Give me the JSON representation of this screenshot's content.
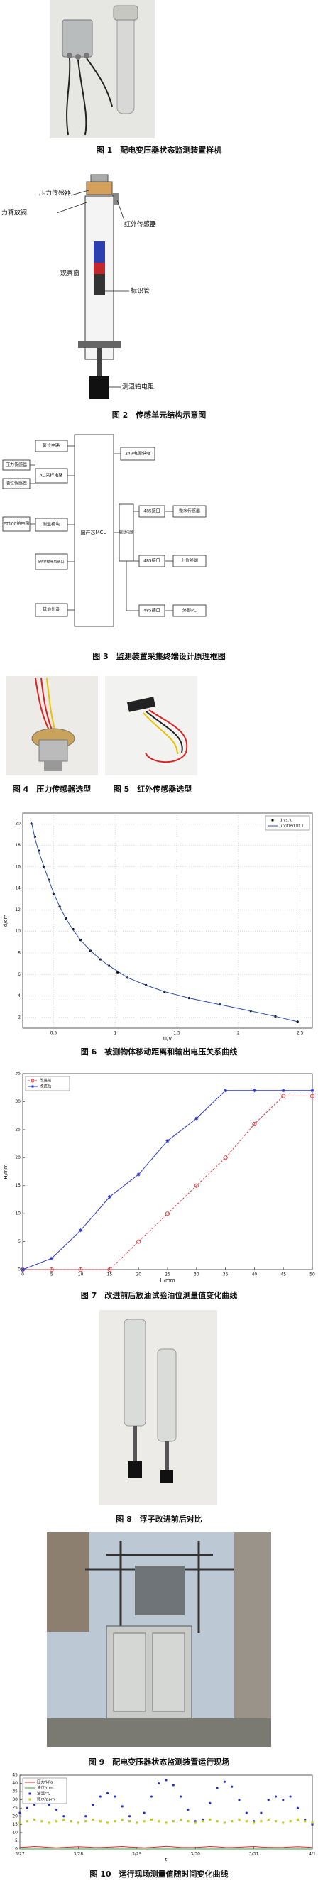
{
  "figures": [
    {
      "caption": "图 1　配电变压器状态监测装置样机"
    },
    {
      "caption": "图 2　传感单元结构示意图"
    },
    {
      "caption": "图 3　监测装置采集终端设计原理框图"
    },
    {
      "caption": "图 4　压力传感器选型"
    },
    {
      "caption": "图 5　红外传感器选型"
    },
    {
      "caption": "图 6　被测物体移动距离和输出电压关系曲线"
    },
    {
      "caption": "图 7　改进前后放油试验油位测量值变化曲线"
    },
    {
      "caption": "图 8　浮子改进前后对比"
    },
    {
      "caption": "图 9　配电变压器状态监测装置运行现场"
    },
    {
      "caption": "图 10　运行现场测量值随时间变化曲线"
    }
  ],
  "fig2_labels": [
    "压力传感器",
    "力释放阀",
    "红外传感器",
    "观察窗",
    "标识管",
    "测温铂电阻"
  ],
  "fig3_blocks": [
    "复位电路",
    "压力传感器",
    "油位传感器",
    "AD采样电路",
    "PT100铂电阻",
    "测温模块",
    "SWD程序烧录口",
    "其他外设",
    "国产芯MCU",
    "24V电源供电",
    "驱动电路",
    "485接口",
    "485接口",
    "485接口",
    "微水传感器",
    "上位终端",
    "外部PC"
  ],
  "chart_data": [
    {
      "type": "line",
      "xlabel": "U/V",
      "ylabel": "d/cm",
      "grid": true,
      "legend": "upper right",
      "x": [
        0.32,
        0.35,
        0.38,
        0.42,
        0.46,
        0.5,
        0.55,
        0.6,
        0.66,
        0.72,
        0.8,
        0.88,
        0.95,
        1.02,
        1.1,
        1.25,
        1.4,
        1.6,
        1.85,
        2.1,
        2.3,
        2.48
      ],
      "series": [
        {
          "name": "d vs. u",
          "color": "#000000",
          "line": false,
          "marker": "dot",
          "dashed": false,
          "values": [
            20,
            18.8,
            17.5,
            16,
            14.8,
            13.5,
            12.3,
            11.2,
            10.2,
            9.2,
            8.2,
            7.4,
            6.8,
            6.2,
            5.7,
            5,
            4.4,
            3.8,
            3.2,
            2.6,
            2.1,
            1.6
          ]
        },
        {
          "name": "untitled fit 1",
          "color": "#2b4f9e",
          "line": true,
          "marker": "none",
          "dashed": false,
          "values": [
            20.2,
            18.6,
            17.4,
            16.1,
            14.8,
            13.6,
            12.3,
            11.2,
            10.1,
            9.2,
            8.2,
            7.4,
            6.8,
            6.3,
            5.7,
            5,
            4.4,
            3.8,
            3.2,
            2.6,
            2.1,
            1.6
          ]
        }
      ],
      "xlim": [
        0.25,
        2.6
      ],
      "xticks": [
        0.5,
        1,
        1.5,
        2,
        2.5
      ],
      "ylim": [
        1,
        21
      ],
      "yticks": [
        2,
        4,
        6,
        8,
        10,
        12,
        14,
        16,
        18,
        20
      ]
    },
    {
      "type": "line",
      "xlabel": "H/mm",
      "ylabel": "H/mm",
      "grid": false,
      "legend": "upper left",
      "x": [
        0,
        5,
        10,
        15,
        20,
        25,
        30,
        35,
        40,
        45,
        50
      ],
      "series": [
        {
          "name": "改进前",
          "color": "#e0393e",
          "line": true,
          "marker": "circle",
          "dashed": true,
          "values": [
            0,
            0,
            0,
            0,
            5,
            10,
            15,
            20,
            26,
            31,
            31
          ]
        },
        {
          "name": "改进后",
          "color": "#2a35c8",
          "line": true,
          "marker": "star",
          "dashed": false,
          "values": [
            0,
            2,
            7,
            13,
            17,
            23,
            27,
            32,
            32,
            32,
            32
          ]
        }
      ],
      "xlim": [
        0,
        50
      ],
      "xticks": [
        0,
        5,
        10,
        15,
        20,
        25,
        30,
        35,
        40,
        45,
        50
      ],
      "ylim": [
        0,
        35
      ],
      "yticks": [
        0,
        5,
        10,
        15,
        20,
        25,
        30,
        35
      ]
    },
    {
      "type": "line",
      "xlabel": "t",
      "grid": false,
      "legend": "upper left",
      "x": [
        0,
        0.125,
        0.25,
        0.375,
        0.5,
        0.625,
        0.75,
        0.875,
        1,
        1.125,
        1.25,
        1.375,
        1.5,
        1.625,
        1.75,
        1.875,
        2,
        2.125,
        2.25,
        2.375,
        2.5,
        2.625,
        2.75,
        2.875,
        3,
        3.125,
        3.25,
        3.375,
        3.5,
        3.625,
        3.75,
        3.875,
        4,
        4.125,
        4.25,
        4.375,
        4.5,
        4.625,
        4.75,
        4.875,
        5
      ],
      "series": [
        {
          "name": "压力/kPa",
          "color": "#e0262b",
          "line": true,
          "marker": "none",
          "dashed": false,
          "values": [
            1,
            1.2,
            1.5,
            1.3,
            1,
            0.8,
            1,
            1.2,
            1.4,
            1.2,
            1,
            0.9,
            1.1,
            1.3,
            1.5,
            1.2,
            1,
            0.8,
            1,
            1.3,
            1.6,
            1.3,
            1,
            0.9,
            1,
            1.2,
            1.5,
            1.3,
            1,
            0.9,
            1.1,
            1.3,
            1.5,
            1.2,
            1,
            0.9,
            1,
            1.2,
            1.4,
            1.2,
            1
          ]
        },
        {
          "name": "油位/mm",
          "color": "#22a832",
          "line": true,
          "marker": "none",
          "dashed": false,
          "values": [
            0,
            0,
            0,
            0,
            0,
            0,
            0,
            0,
            0,
            0,
            0,
            0,
            0,
            0,
            0,
            0,
            0,
            0,
            0,
            0,
            0,
            0,
            0,
            0,
            0,
            0,
            0,
            0,
            0,
            0,
            0,
            0,
            0,
            0,
            0,
            0,
            0,
            0,
            0,
            0,
            0
          ]
        },
        {
          "name": "油温/℃",
          "color": "#1f2fd0",
          "line": false,
          "marker": "dot",
          "dashed": false,
          "values": [
            22,
            25,
            27,
            28,
            27,
            24,
            20,
            17,
            16,
            20,
            27,
            32,
            34,
            32,
            26,
            20,
            16,
            22,
            32,
            40,
            42,
            39,
            32,
            24,
            17,
            18,
            28,
            37,
            41,
            38,
            30,
            22,
            17,
            22,
            30,
            32,
            30,
            32,
            25,
            18,
            15
          ]
        },
        {
          "name": "微水/ppm",
          "color": "#c8c820",
          "line": false,
          "marker": "square",
          "dashed": false,
          "values": [
            16,
            17,
            18,
            17,
            16,
            17,
            18,
            17,
            16,
            17,
            18,
            17,
            16,
            17,
            18,
            17,
            16,
            17,
            18,
            17,
            16,
            17,
            18,
            17,
            16,
            17,
            18,
            17,
            16,
            17,
            18,
            17,
            16,
            17,
            18,
            17,
            16,
            17,
            18,
            17,
            16
          ]
        }
      ],
      "xlim": [
        0,
        5
      ],
      "xticks": [
        {
          "value": 0,
          "label": "3/27"
        },
        {
          "value": 1,
          "label": "3/28"
        },
        {
          "value": 2,
          "label": "3/29"
        },
        {
          "value": 3,
          "label": "3/30"
        },
        {
          "value": 4,
          "label": "3/31"
        },
        {
          "value": 5,
          "label": "4/1"
        }
      ],
      "ylim": [
        0,
        45
      ],
      "yticks": [
        0,
        5,
        10,
        15,
        20,
        25,
        30,
        35,
        40,
        45
      ]
    }
  ]
}
